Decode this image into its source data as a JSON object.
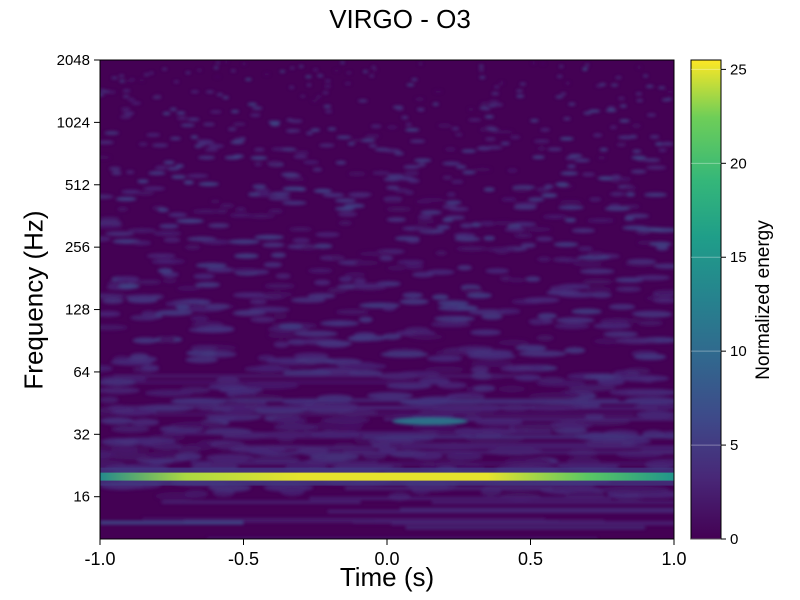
{
  "chart_data": {
    "type": "heatmap",
    "title": "VIRGO - O3",
    "xlabel": "Time (s)",
    "ylabel": "Frequency (Hz)",
    "xlim": [
      -1.0,
      1.0
    ],
    "ylim": [
      10,
      2048
    ],
    "yscale": "log2",
    "xticks": [
      "-1.0",
      "-0.5",
      "0.0",
      "0.5",
      "1.0"
    ],
    "xtick_values": [
      -1.0,
      -0.5,
      0.0,
      0.5,
      1.0
    ],
    "yticks": [
      "16",
      "32",
      "64",
      "128",
      "256",
      "512",
      "1024",
      "2048"
    ],
    "ytick_values": [
      16,
      32,
      64,
      128,
      256,
      512,
      1024,
      2048
    ],
    "colorbar": {
      "label": "Normalized energy",
      "range": [
        0,
        25.5
      ],
      "ticks": [
        "0",
        "5",
        "10",
        "15",
        "20",
        "25"
      ],
      "tick_values": [
        0,
        5,
        10,
        15,
        20,
        25
      ],
      "colormap": "viridis"
    },
    "features": [
      {
        "kind": "horizontal-band",
        "frequency_hz": 20,
        "t_start": -1.0,
        "t_end": 1.0,
        "peak_energy": 25,
        "peak_time": 0.0
      },
      {
        "kind": "blob",
        "time": 0.15,
        "frequency_hz": 37,
        "energy": 12
      },
      {
        "kind": "band",
        "frequency_hz": 12,
        "t_start": -1.0,
        "t_end": -0.5,
        "energy": 7
      }
    ]
  }
}
